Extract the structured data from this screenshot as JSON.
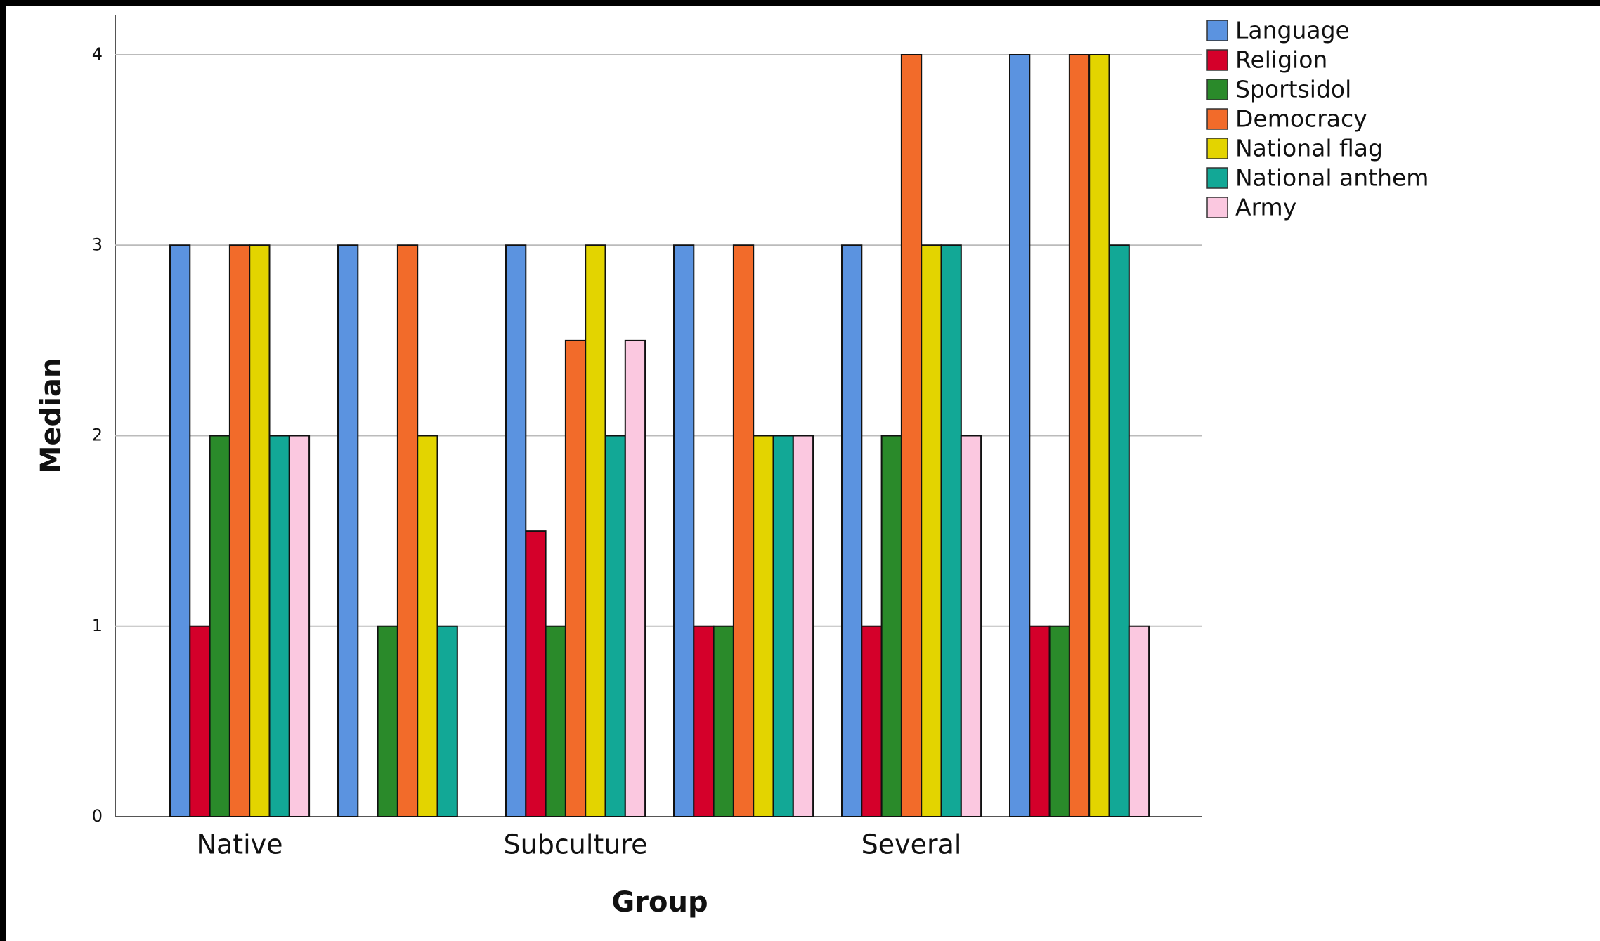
{
  "chart_data": {
    "type": "bar",
    "x_label": "Group",
    "y_label": "Median",
    "categories": [
      "Native",
      null,
      "Subculture",
      null,
      "Several",
      null
    ],
    "series": [
      {
        "name": "Language",
        "color": "#5b93e0",
        "values": [
          3,
          3,
          3,
          3,
          3,
          4
        ]
      },
      {
        "name": "Religion",
        "color": "#d4002a",
        "values": [
          1,
          0,
          1.5,
          1,
          1,
          1
        ]
      },
      {
        "name": "Sportsidol",
        "color": "#2a8a2a",
        "values": [
          2,
          1,
          1,
          1,
          2,
          1
        ]
      },
      {
        "name": "Democracy",
        "color": "#f26b2a",
        "values": [
          3,
          3,
          2.5,
          3,
          4,
          4
        ]
      },
      {
        "name": "National flag",
        "color": "#e3d400",
        "values": [
          3,
          2,
          3,
          2,
          3,
          4
        ]
      },
      {
        "name": "National anthem",
        "color": "#12a896",
        "values": [
          2,
          1,
          2,
          2,
          3,
          3
        ]
      },
      {
        "name": "Army",
        "color": "#fbc8e0",
        "values": [
          2,
          0,
          2.5,
          2,
          2,
          1
        ]
      }
    ],
    "ylim": [
      0,
      4
    ],
    "yticks": [
      0,
      1,
      2,
      3,
      4
    ],
    "grid": true,
    "legend": "top-right"
  }
}
